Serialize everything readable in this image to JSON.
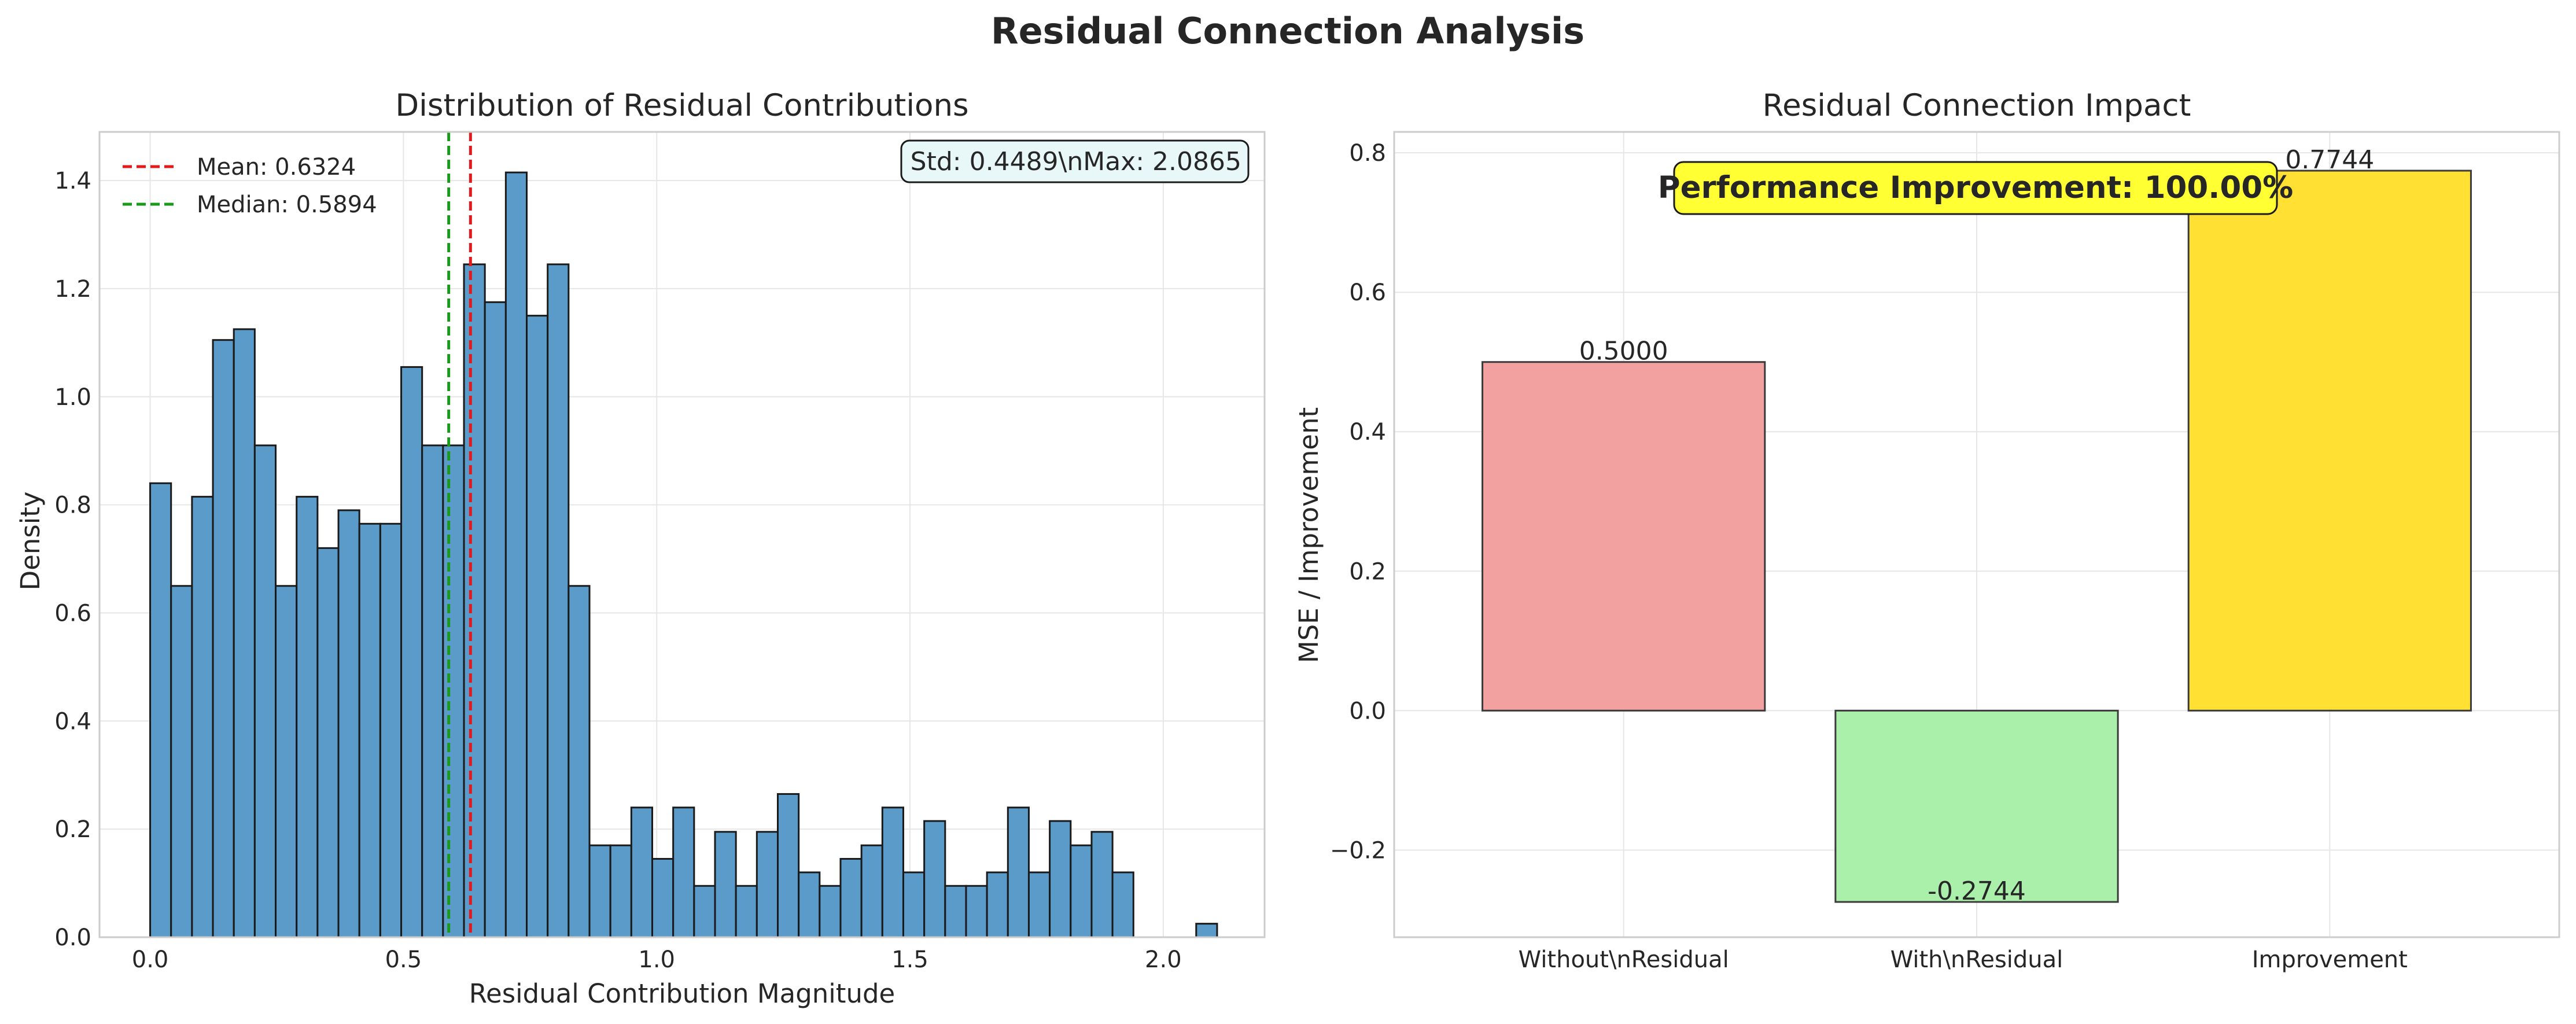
{
  "figure": {
    "title": "Residual Connection Analysis"
  },
  "chart_data": [
    {
      "type": "bar",
      "subtype": "histogram",
      "title": "Distribution of Residual Contributions",
      "xlabel": "Residual Contribution Magnitude",
      "ylabel": "Density",
      "xlim": [
        -0.1,
        2.2
      ],
      "ylim": [
        0,
        1.49
      ],
      "xticks": [
        0.0,
        0.5,
        1.0,
        1.5,
        2.0
      ],
      "xtick_labels": [
        "0.0",
        "0.5",
        "1.0",
        "1.5",
        "2.0"
      ],
      "yticks": [
        0.0,
        0.2,
        0.4,
        0.6,
        0.8,
        1.0,
        1.2,
        1.4
      ],
      "ytick_labels": [
        "0.0",
        "0.2",
        "0.4",
        "0.6",
        "0.8",
        "1.0",
        "1.2",
        "1.4"
      ],
      "bin_start": 0.0,
      "bin_width": 0.0413,
      "values": [
        0.84,
        0.65,
        0.815,
        1.105,
        1.125,
        0.91,
        0.65,
        0.815,
        0.72,
        0.79,
        0.765,
        0.765,
        1.055,
        0.91,
        0.91,
        1.245,
        1.175,
        1.415,
        1.15,
        1.245,
        0.65,
        0.17,
        0.17,
        0.24,
        0.145,
        0.24,
        0.095,
        0.195,
        0.095,
        0.195,
        0.265,
        0.12,
        0.095,
        0.145,
        0.17,
        0.24,
        0.12,
        0.215,
        0.095,
        0.095,
        0.12,
        0.24,
        0.12,
        0.215,
        0.17,
        0.195,
        0.12,
        0,
        0,
        0,
        0.025
      ],
      "bar_color": "#5b9bc9",
      "edge_color": "#1a1a1a",
      "grid": true,
      "reference_lines": [
        {
          "name": "Mean: 0.6324",
          "x": 0.6324,
          "color": "#e31a1c",
          "style": "dashed"
        },
        {
          "name": "Median: 0.5894",
          "x": 0.5894,
          "color": "#1a9a1a",
          "style": "dashed"
        }
      ],
      "legend_position": "upper-left",
      "stats_box": {
        "text": "Std: 0.4489\\nMax: 2.0865",
        "position": "upper-right",
        "background": "#e8f8f8"
      }
    },
    {
      "type": "bar",
      "title": "Residual Connection Impact",
      "xlabel": "",
      "ylabel": "MSE / Improvement",
      "categories": [
        "Without\\nResidual",
        "With\\nResidual",
        "Improvement"
      ],
      "values": [
        0.5,
        -0.2744,
        0.7744
      ],
      "value_labels": [
        "0.5000",
        "-0.2744",
        "0.7744"
      ],
      "colors": [
        "#f2a0a0",
        "#aaf0aa",
        "#ffe033"
      ],
      "edge_color": "#3a3a3a",
      "ylim": [
        -0.325,
        0.83
      ],
      "yticks": [
        -0.2,
        0.0,
        0.2,
        0.4,
        0.6,
        0.8
      ],
      "ytick_labels": [
        "−0.2",
        "0.0",
        "0.2",
        "0.4",
        "0.6",
        "0.8"
      ],
      "grid": true,
      "callout": {
        "text": "Performance Improvement: 100.00%",
        "background": "#ffff33",
        "position": "top-center"
      }
    }
  ]
}
